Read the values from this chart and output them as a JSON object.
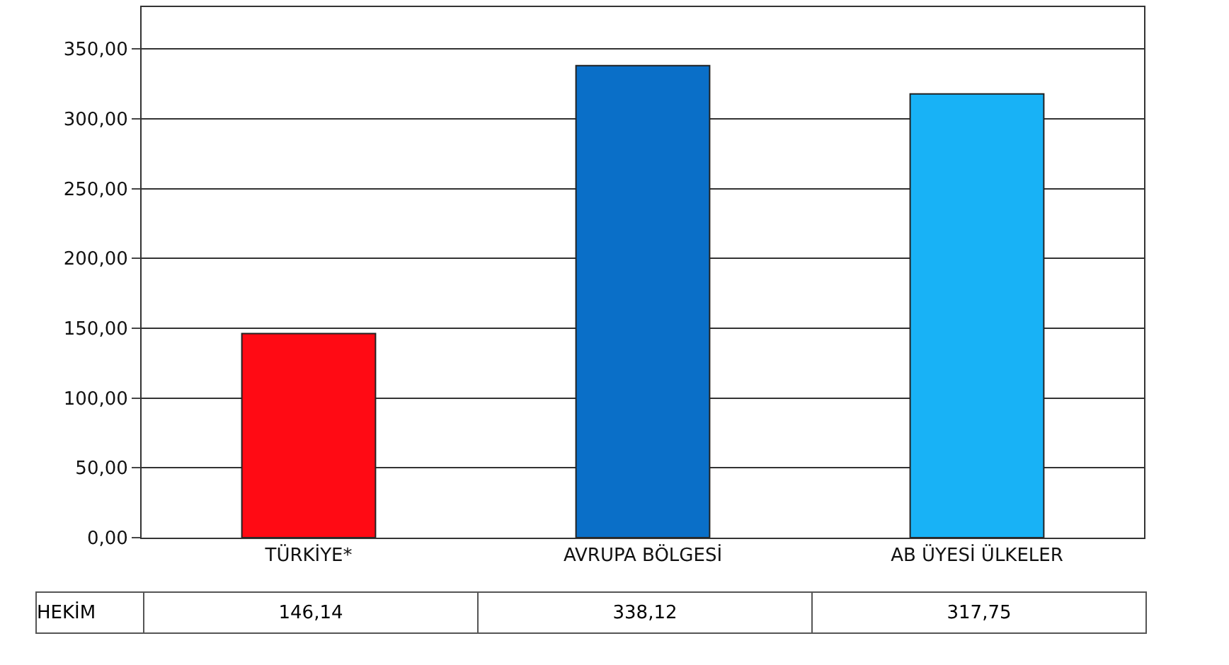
{
  "chart_data": {
    "type": "bar",
    "categories": [
      "TÜRKİYE*",
      "AVRUPA BÖLGESİ",
      "AB ÜYESİ ÜLKELER"
    ],
    "series": [
      {
        "name": "HEKİM",
        "colors": [
          "#ff0a14",
          "#0a6fc8",
          "#18b2f6"
        ],
        "values": [
          146.14,
          338.12,
          317.75
        ],
        "value_labels": [
          "146,14",
          "338,12",
          "317,75"
        ]
      }
    ],
    "ylim": [
      0,
      380
    ],
    "yticks": [
      {
        "value": 0,
        "label": "0,00"
      },
      {
        "value": 50,
        "label": "50,00"
      },
      {
        "value": 100,
        "label": "100,00"
      },
      {
        "value": 150,
        "label": "150,00"
      },
      {
        "value": 200,
        "label": "200,00"
      },
      {
        "value": 250,
        "label": "250,00"
      },
      {
        "value": 300,
        "label": "300,00"
      },
      {
        "value": 350,
        "label": "350,00"
      }
    ],
    "grid": "y"
  }
}
